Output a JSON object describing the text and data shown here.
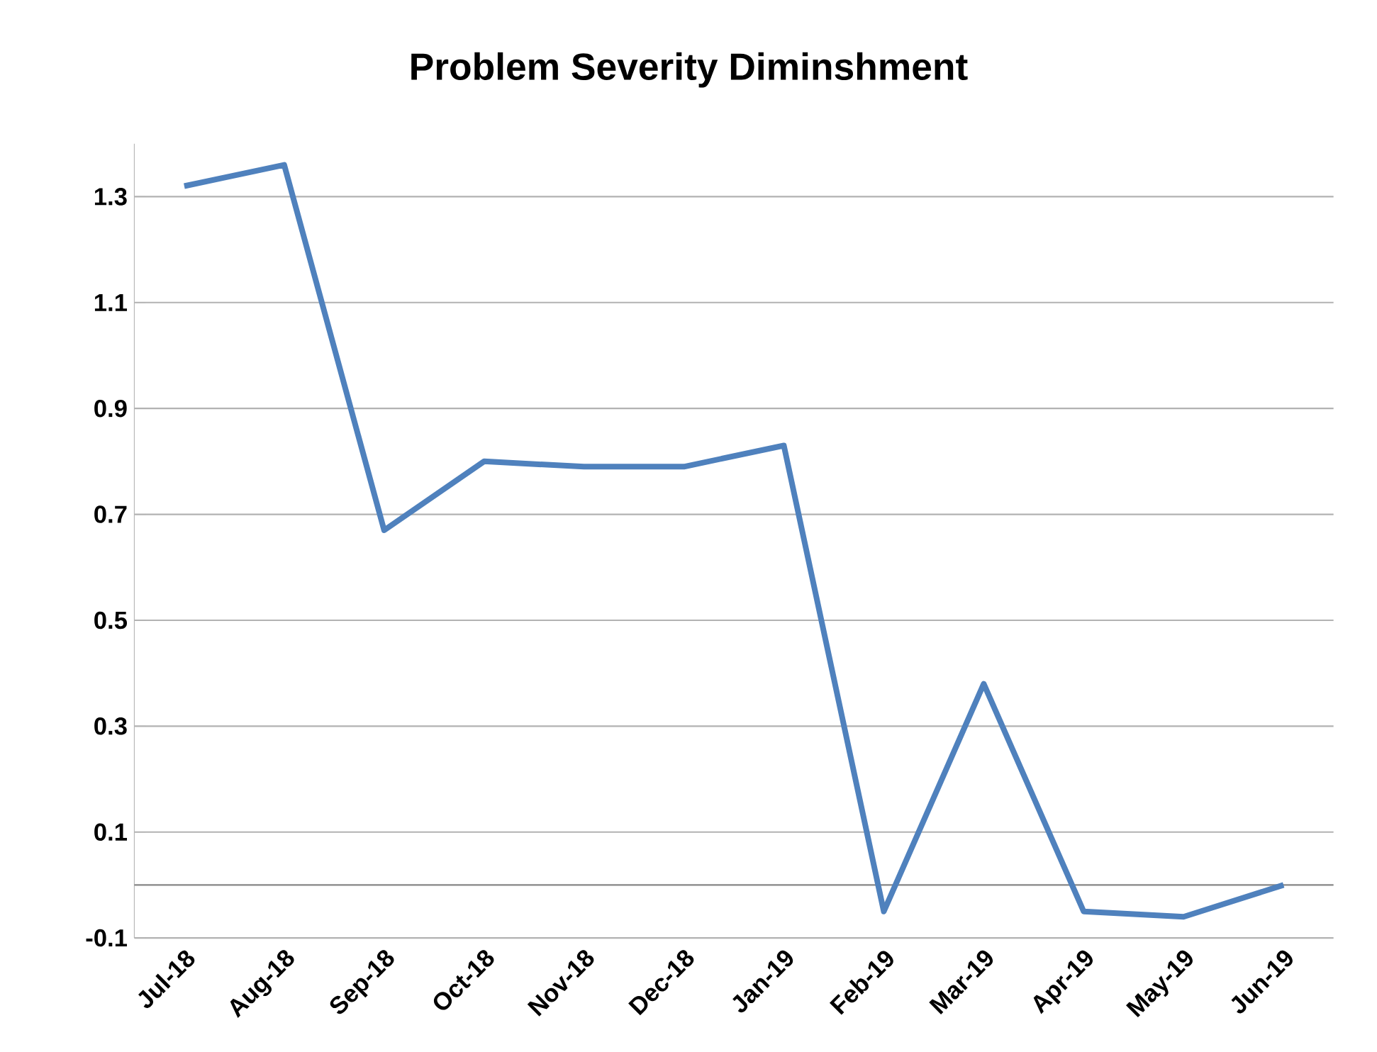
{
  "chart_data": {
    "type": "line",
    "title": "Problem Severity Diminshment",
    "categories": [
      "Jul-18",
      "Aug-18",
      "Sep-18",
      "Oct-18",
      "Nov-18",
      "Dec-18",
      "Jan-19",
      "Feb-19",
      "Mar-19",
      "Apr-19",
      "May-19",
      "Jun-19"
    ],
    "series": [
      {
        "color": "#4f81bd",
        "values": [
          1.32,
          1.36,
          0.67,
          0.8,
          0.79,
          0.79,
          0.83,
          -0.05,
          0.38,
          -0.05,
          -0.06,
          0.0
        ]
      }
    ],
    "ylim": [
      -0.1,
      1.4
    ],
    "yticks": [
      -0.1,
      0.1,
      0.3,
      0.5,
      0.7,
      0.9,
      1.1,
      1.3
    ],
    "ref_lines": [
      {
        "axis": "y",
        "value": 0,
        "color": "#868686"
      }
    ],
    "grid": "y",
    "marker": "none",
    "line_style": "solid"
  }
}
